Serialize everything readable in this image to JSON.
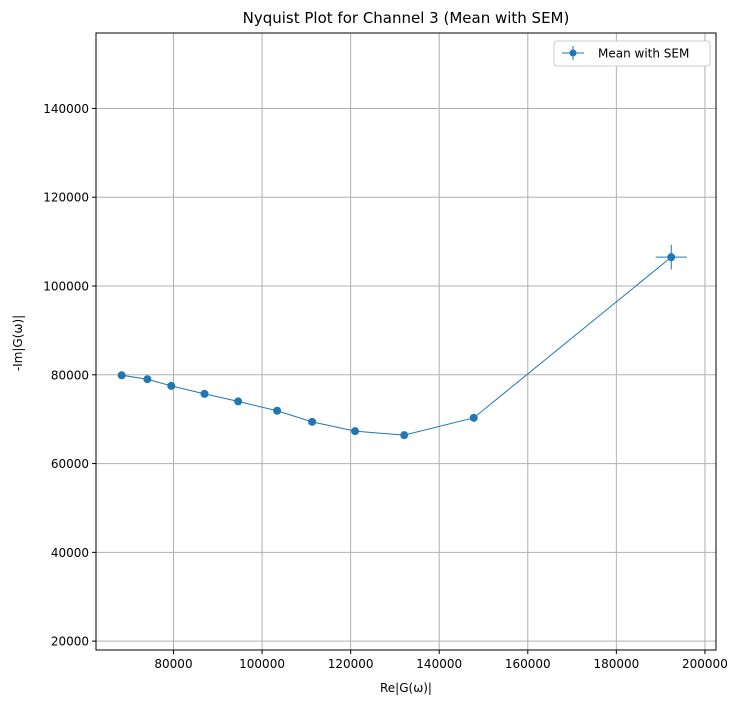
{
  "chart_data": {
    "type": "scatter",
    "title": "Nyquist Plot for Channel 3 (Mean with SEM)",
    "xlabel": "Re|G(ω)|",
    "ylabel": "-Im|G(ω)|",
    "xlim": [
      62500,
      202500
    ],
    "ylim": [
      18000,
      157000
    ],
    "xticks": [
      80000,
      100000,
      120000,
      140000,
      160000,
      180000,
      200000
    ],
    "xtick_labels": [
      "80000",
      "100000",
      "120000",
      "140000",
      "160000",
      "180000",
      "200000"
    ],
    "yticks": [
      20000,
      40000,
      60000,
      80000,
      100000,
      120000,
      140000
    ],
    "ytick_labels": [
      "20000",
      "40000",
      "60000",
      "80000",
      "100000",
      "120000",
      "140000"
    ],
    "grid": true,
    "legend_position": "top-right",
    "series": [
      {
        "name": "Mean with SEM",
        "color": "#1f77b4",
        "marker": "circle",
        "x": [
          68300,
          74100,
          79500,
          87000,
          94600,
          103400,
          111300,
          121000,
          132100,
          147800,
          192400
        ],
        "y": [
          79900,
          79000,
          77500,
          75700,
          74000,
          71900,
          69400,
          67300,
          66400,
          70300,
          106500
        ],
        "x_err": [
          300,
          300,
          300,
          300,
          300,
          300,
          300,
          400,
          400,
          500,
          3500
        ],
        "y_err": [
          300,
          300,
          300,
          300,
          300,
          300,
          300,
          300,
          300,
          400,
          2800
        ]
      }
    ]
  }
}
